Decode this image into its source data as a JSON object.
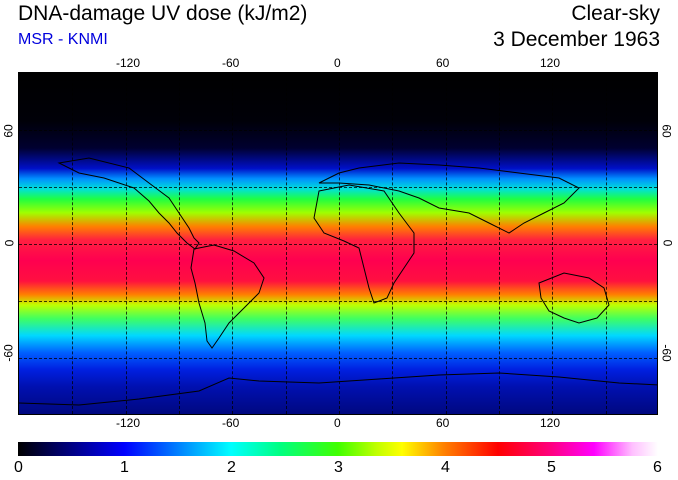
{
  "header": {
    "title": "DNA-damage UV dose (kJ/m2)",
    "source": "MSR - KNMI",
    "condition": "Clear-sky",
    "date": "3 December 1963"
  },
  "map": {
    "longitude_labels": [
      "-120",
      "-60",
      "0",
      "60",
      "120"
    ],
    "latitude_labels": [
      "60",
      "0",
      "-60"
    ]
  },
  "colorbar": {
    "labels": [
      "0",
      "1",
      "2",
      "3",
      "4",
      "5",
      "6"
    ],
    "min": 0,
    "max": 6
  },
  "colors": {
    "subtitle": "#0000dd"
  }
}
